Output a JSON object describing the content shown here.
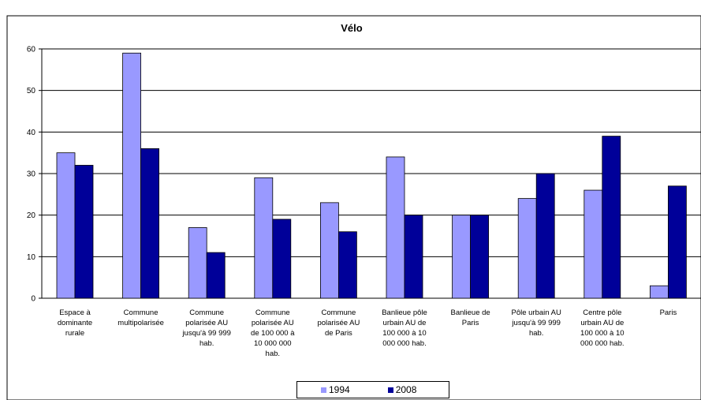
{
  "chart_data": {
    "type": "bar",
    "title": "Vélo",
    "xlabel": "",
    "ylabel": "",
    "ylim": [
      0,
      60
    ],
    "yticks": [
      0,
      10,
      20,
      30,
      40,
      50,
      60
    ],
    "grid": true,
    "legend_position": "bottom",
    "categories": [
      "Espace à\ndominante\nrurale",
      "Commune\nmultipolarisée",
      "Commune\npolarisée AU\njusqu'à 99 999\nhab.",
      "Commune\npolarisée  AU\nde 100 000 à\n10 000 000\nhab.",
      "Commune\npolarisée AU\nde Paris",
      "Banlieue pôle\nurbain AU de\n100 000 à 10\n000 000 hab.",
      "Banlieue de\nParis",
      "Pôle urbain AU\njusqu'à 99 999\nhab.",
      "Centre pôle\nurbain AU de\n100 000 à 10\n000 000 hab.",
      "Paris"
    ],
    "series": [
      {
        "name": "1994",
        "color": "#9999ff",
        "values": [
          35,
          59,
          17,
          29,
          23,
          34,
          20,
          24,
          26,
          3
        ]
      },
      {
        "name": "2008",
        "color": "#000099",
        "values": [
          32,
          36,
          11,
          19,
          16,
          20,
          20,
          30,
          39,
          27
        ]
      }
    ]
  }
}
